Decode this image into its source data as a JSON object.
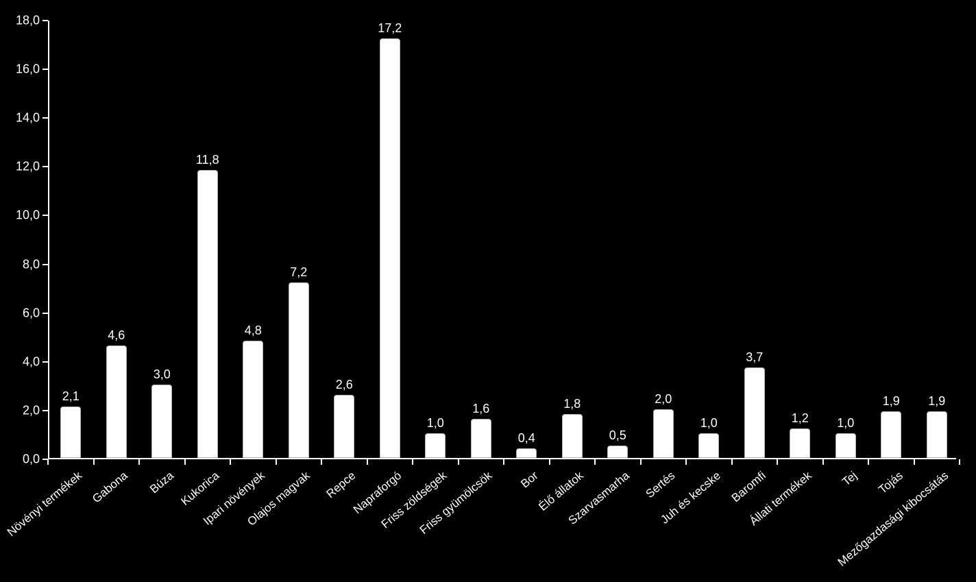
{
  "chart": {
    "type": "bar",
    "background_color": "#000000",
    "bar_fill": "#ffffff",
    "bar_border": "#b0b0b0",
    "axis_color": "#ffffff",
    "text_color": "#ffffff",
    "tick_fontsize": 18,
    "value_fontsize": 18,
    "xlabel_fontsize": 17,
    "xlabel_rotation_deg": -40,
    "ylim": [
      0.0,
      18.0
    ],
    "ytick_step": 2.0,
    "decimal_separator": ",",
    "bar_width_ratio": 0.45,
    "y_ticks": [
      {
        "value": 0.0,
        "label": "0,0"
      },
      {
        "value": 2.0,
        "label": "2,0"
      },
      {
        "value": 4.0,
        "label": "4,0"
      },
      {
        "value": 6.0,
        "label": "6,0"
      },
      {
        "value": 8.0,
        "label": "8,0"
      },
      {
        "value": 10.0,
        "label": "10,0"
      },
      {
        "value": 12.0,
        "label": "12,0"
      },
      {
        "value": 14.0,
        "label": "14,0"
      },
      {
        "value": 16.0,
        "label": "16,0"
      },
      {
        "value": 18.0,
        "label": "18,0"
      }
    ],
    "data": [
      {
        "category": "Növényi termékek",
        "value": 2.1,
        "label": "2,1"
      },
      {
        "category": "Gabona",
        "value": 4.6,
        "label": "4,6"
      },
      {
        "category": "Búza",
        "value": 3.0,
        "label": "3,0"
      },
      {
        "category": "Kukorica",
        "value": 11.8,
        "label": "11,8"
      },
      {
        "category": "Ipari növények",
        "value": 4.8,
        "label": "4,8"
      },
      {
        "category": "Olajos magvak",
        "value": 7.2,
        "label": "7,2"
      },
      {
        "category": "Repce",
        "value": 2.6,
        "label": "2,6"
      },
      {
        "category": "Napraforgó",
        "value": 17.2,
        "label": "17,2"
      },
      {
        "category": "Friss zöldségek",
        "value": 1.0,
        "label": "1,0"
      },
      {
        "category": "Friss gyümölcsök",
        "value": 1.6,
        "label": "1,6"
      },
      {
        "category": "Bor",
        "value": 0.4,
        "label": "0,4"
      },
      {
        "category": "Élő állatok",
        "value": 1.8,
        "label": "1,8"
      },
      {
        "category": "Szarvasmarha",
        "value": 0.5,
        "label": "0,5"
      },
      {
        "category": "Sertés",
        "value": 2.0,
        "label": "2,0"
      },
      {
        "category": "Juh és kecske",
        "value": 1.0,
        "label": "1,0"
      },
      {
        "category": "Baromfi",
        "value": 3.7,
        "label": "3,7"
      },
      {
        "category": "Állati termékek",
        "value": 1.2,
        "label": "1,2"
      },
      {
        "category": "Tej",
        "value": 1.0,
        "label": "1,0"
      },
      {
        "category": "Tojás",
        "value": 1.9,
        "label": "1,9"
      },
      {
        "category": "Mezőgazdasági kibocsátás",
        "value": 1.9,
        "label": "1,9"
      }
    ]
  }
}
